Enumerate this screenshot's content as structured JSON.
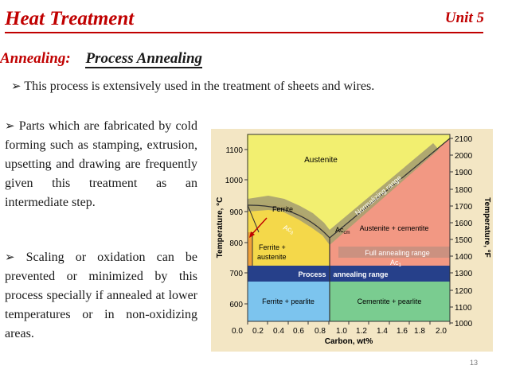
{
  "header": {
    "title": "Heat Treatment",
    "unit": "Unit 5"
  },
  "subtitle": {
    "annealing": "Annealing:",
    "process": "Process Annealing"
  },
  "bullets": {
    "b1": "This process is extensively used in the treatment of sheets and wires.",
    "b2": "Parts which are fabricated by cold forming such as stamping, extrusion, upsetting and drawing are frequently given this treatment as an intermediate step.",
    "b3": "Scaling or oxidation can be prevented or minimized by this process specially if annealed at lower temperatures or in non-oxidizing areas."
  },
  "diagram": {
    "y_left_label": "Temperature, °C",
    "y_right_label": "Temperature, °F",
    "x_label": "Carbon, wt%",
    "c_ticks": [
      "1100",
      "1000",
      "900",
      "800",
      "700",
      "600"
    ],
    "f_ticks": [
      "2100",
      "2000",
      "1900",
      "1800",
      "1700",
      "1600",
      "1500",
      "1400",
      "1300",
      "1200",
      "1100",
      "1000"
    ],
    "x_ticks": [
      "0.0",
      "0.2",
      "0.4",
      "0.6",
      "0.8",
      "1.0",
      "1.2",
      "1.4",
      "1.6",
      "1.8",
      "2.0"
    ],
    "regions": {
      "austenite": "Austenite",
      "ferrite": "Ferrite",
      "ferrite_austenite_1": "Ferrite +",
      "ferrite_austenite_2": "austenite",
      "austenite_cementite": "Austenite + cementite",
      "ferrite_pearlite": "Ferrite + pearlite",
      "cementite_pearlite": "Cementite + pearlite"
    },
    "labels": {
      "normalizing": "Normalizing range",
      "full_annealing": "Full annealing range",
      "process_annealing_1": "Process",
      "process_annealing_2": "annealing range",
      "ac3": "Ac",
      "ac3_sub": "3",
      "acm": "Ac",
      "acm_sub": "cm",
      "ac1": "Ac",
      "ac1_sub": "1"
    },
    "colors": {
      "austenite": "#f2ef70",
      "ferrite_austenite": "#f4d84a",
      "austenite_cementite": "#f29883",
      "ferrite_pearlite": "#7cc4ee",
      "cementite_pearlite": "#7acc90",
      "process_band": "#26408a",
      "normalizing_band": "#a7a070",
      "full_annealing_band": "#c8907f"
    }
  },
  "page_number": "13"
}
